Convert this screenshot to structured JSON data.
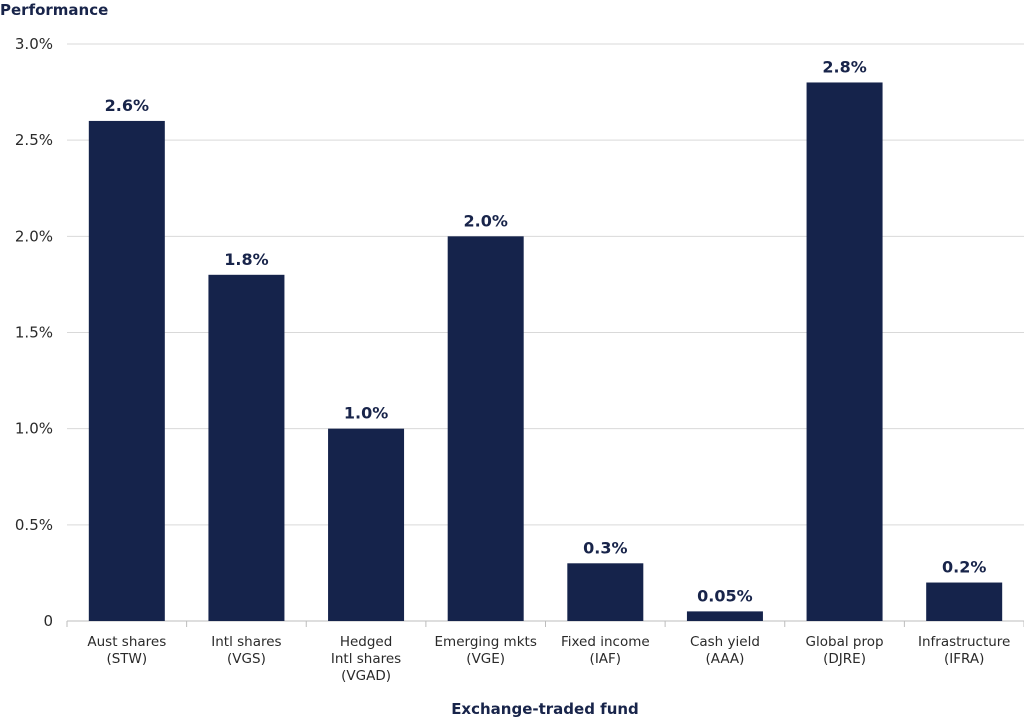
{
  "chart_data": {
    "type": "bar",
    "ylabel": "Performance",
    "xlabel": "Exchange-traded fund",
    "categories": [
      [
        "Aust shares",
        "(STW)"
      ],
      [
        "Intl shares",
        "(VGS)"
      ],
      [
        "Hedged",
        "Intl shares",
        "(VGAD)"
      ],
      [
        "Emerging mkts",
        "(VGE)"
      ],
      [
        "Fixed income",
        "(IAF)"
      ],
      [
        "Cash yield",
        "(AAA)"
      ],
      [
        "Global prop",
        "(DJRE)"
      ],
      [
        "Infrastructure",
        "(IFRA)"
      ]
    ],
    "values": [
      2.6,
      1.8,
      1.0,
      2.0,
      0.3,
      0.05,
      2.8,
      0.2
    ],
    "data_labels": [
      "2.6%",
      "1.8%",
      "1.0%",
      "2.0%",
      "0.3%",
      "0.05%",
      "2.8%",
      "0.2%"
    ],
    "yticks": [
      0,
      0.5,
      1.0,
      1.5,
      2.0,
      2.5,
      3.0
    ],
    "ytick_labels": [
      "0",
      "0.5%",
      "1.0%",
      "1.5%",
      "2.0%",
      "2.5%",
      "3.0%"
    ],
    "ylim": [
      0,
      3.0
    ],
    "grid": true,
    "colors": {
      "bar": "#15234b",
      "text": "#18244a",
      "grid": "#d9d9d9"
    }
  }
}
